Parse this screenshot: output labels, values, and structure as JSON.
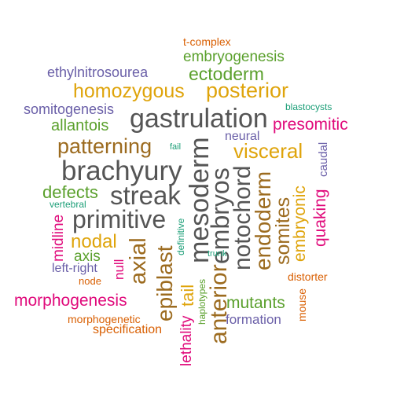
{
  "colors": {
    "orange": "#d95f02",
    "green": "#5aa02c",
    "gold": "#dfa40b",
    "purple": "#6a5fa8",
    "gray": "#555555",
    "brown": "#9c6b1f",
    "pink": "#e00a7b",
    "teal": "#1b9e77"
  },
  "words": {
    "t_complex": "t-complex",
    "embryogenesis": "embryogenesis",
    "ethylnitrosourea": "ethylnitrosourea",
    "ectoderm": "ectoderm",
    "homozygous": "homozygous",
    "posterior": "posterior",
    "somitogenesis": "somitogenesis",
    "blastocysts": "blastocysts",
    "gastrulation": "gastrulation",
    "allantois": "allantois",
    "presomitic": "presomitic",
    "neural": "neural",
    "patterning": "patterning",
    "fail": "fail",
    "visceral": "visceral",
    "caudal": "caudal",
    "brachyury": "brachyury",
    "mesoderm": "mesoderm",
    "embryos": "embryos",
    "notochord": "notochord",
    "streak": "streak",
    "defects": "defects",
    "embryonic": "embryonic",
    "vertebral": "vertebral",
    "primitive": "primitive",
    "quaking": "quaking",
    "definitive": "definitive",
    "midline": "midline",
    "nodal": "nodal",
    "axial": "axial",
    "epiblast": "epiblast",
    "somites": "somites",
    "endoderm": "endoderm",
    "anterior": "anterior",
    "axis": "axis",
    "null": "null",
    "trunk": "trunk",
    "left_right": "left-right",
    "node": "node",
    "distorter": "distorter",
    "haplotypes": "haplotypes",
    "morphogenesis": "morphogenesis",
    "tail": "tail",
    "mutants": "mutants",
    "mouse": "mouse",
    "morphogenetic": "morphogenetic",
    "lethality": "lethality",
    "formation": "formation",
    "specification": "specification"
  }
}
